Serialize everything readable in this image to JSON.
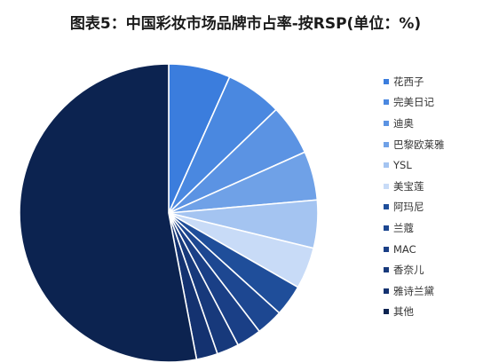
{
  "chart_data": {
    "type": "pie",
    "title": "图表5：中国彩妆市场品牌市占率-按RSP(单位：%)",
    "categories": [
      "花西子",
      "完美日记",
      "迪奥",
      "巴黎欧莱雅",
      "YSL",
      "美宝莲",
      "阿玛尼",
      "兰蔻",
      "MAC",
      "香奈儿",
      "雅诗兰黛",
      "其他"
    ],
    "values": [
      6.7,
      6.1,
      5.5,
      5.3,
      5.2,
      4.5,
      3.4,
      2.9,
      2.7,
      2.4,
      2.3,
      53.0
    ],
    "colors": [
      "#3b7ddd",
      "#4a88e0",
      "#5b93e3",
      "#6fa1e7",
      "#a4c4f1",
      "#c8dbf7",
      "#1f4e9a",
      "#1d4791",
      "#1a3f86",
      "#17397b",
      "#143270",
      "#0c2350"
    ],
    "start": "12 o'clock",
    "direction": "clockwise",
    "legend": "right"
  }
}
